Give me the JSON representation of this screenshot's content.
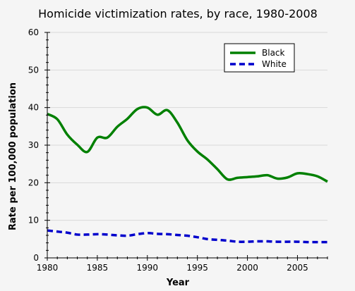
{
  "chart_data": {
    "type": "line",
    "title": "Homicide victimization rates, by race, 1980-2008",
    "xlabel": "Year",
    "ylabel": "Rate per 100,000 population",
    "xlim": [
      1980,
      2008
    ],
    "ylim": [
      0,
      60
    ],
    "x_ticks": [
      1980,
      1985,
      1990,
      1995,
      2000,
      2005
    ],
    "y_ticks": [
      0,
      10,
      20,
      30,
      40,
      50,
      60
    ],
    "grid": true,
    "legend_position": "top-right",
    "x": [
      1980,
      1981,
      1982,
      1983,
      1984,
      1985,
      1986,
      1987,
      1988,
      1989,
      1990,
      1991,
      1992,
      1993,
      1994,
      1995,
      1996,
      1997,
      1998,
      1999,
      2000,
      2001,
      2002,
      2003,
      2004,
      2005,
      2006,
      2007,
      2008
    ],
    "series": [
      {
        "name": "Black",
        "color": "#008000",
        "style": "solid",
        "values": [
          38.3,
          36.9,
          32.8,
          30.1,
          28.2,
          32.0,
          32.0,
          34.9,
          37.0,
          39.6,
          40.0,
          38.1,
          39.3,
          36.0,
          31.3,
          28.3,
          26.2,
          23.6,
          20.9,
          21.3,
          21.5,
          21.7,
          22.0,
          21.1,
          21.4,
          22.5,
          22.3,
          21.7,
          20.3
        ]
      },
      {
        "name": "White",
        "color": "#0000cc",
        "style": "dashed",
        "values": [
          7.3,
          7.0,
          6.7,
          6.2,
          6.2,
          6.3,
          6.2,
          6.0,
          5.9,
          6.3,
          6.6,
          6.4,
          6.3,
          6.1,
          5.9,
          5.5,
          5.0,
          4.8,
          4.6,
          4.3,
          4.3,
          4.4,
          4.4,
          4.3,
          4.3,
          4.3,
          4.2,
          4.2,
          4.2
        ]
      }
    ]
  }
}
